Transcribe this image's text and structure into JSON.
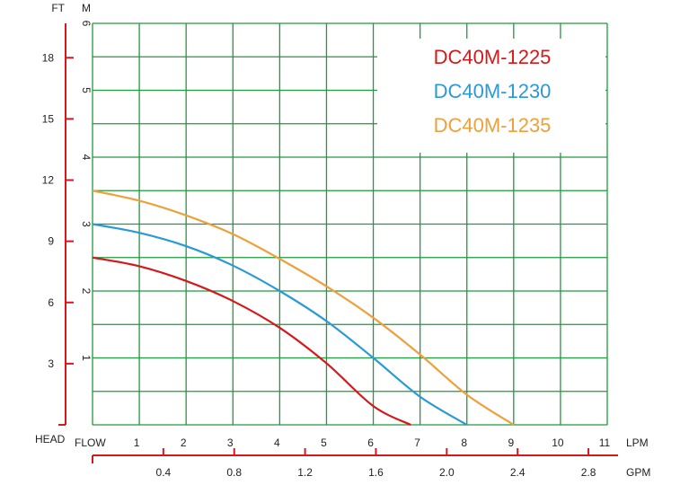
{
  "chart_data": {
    "type": "line",
    "grid": true,
    "legend_position": "top-right",
    "x_primary": {
      "unit_label": "LPM",
      "prefix_label": "FLOW",
      "ticks": [
        1,
        2,
        3,
        4,
        5,
        6,
        7,
        8,
        9,
        10,
        11
      ],
      "tick_labels": [
        "1",
        "2",
        "3",
        "4",
        "5",
        "6",
        "7",
        "8",
        "9",
        "10",
        "11"
      ],
      "range": [
        0,
        11
      ]
    },
    "x_secondary": {
      "unit_label": "GPM",
      "ticks": [
        0.4,
        0.8,
        1.2,
        1.6,
        2.0,
        2.4,
        2.8
      ],
      "tick_labels": [
        "0.4",
        "0.8",
        "1.2",
        "1.6",
        "2.0",
        "2.4",
        "2.8"
      ]
    },
    "y_primary": {
      "unit_label": "M",
      "ticks": [
        1,
        2,
        3,
        4,
        5,
        6
      ],
      "tick_labels": [
        "1",
        "2",
        "3",
        "4",
        "5",
        "6"
      ],
      "range": [
        0,
        6
      ]
    },
    "y_secondary": {
      "unit_label": "FT",
      "ticks": [
        3,
        6,
        9,
        12,
        15,
        18
      ],
      "tick_labels": [
        "3",
        "6",
        "9",
        "12",
        "15",
        "18"
      ]
    },
    "corner_label": "HEAD",
    "series": [
      {
        "name": "DC40M-1225",
        "color": "#d4191c",
        "x": [
          0,
          1,
          2,
          3,
          4,
          5,
          6,
          6.8
        ],
        "y": [
          2.5,
          2.37,
          2.15,
          1.85,
          1.45,
          0.92,
          0.28,
          0
        ]
      },
      {
        "name": "DC40M-1230",
        "color": "#2a9ad6",
        "x": [
          0,
          1,
          2,
          3,
          4,
          5,
          6,
          7,
          8.0
        ],
        "y": [
          3.0,
          2.87,
          2.67,
          2.38,
          2.0,
          1.55,
          1.0,
          0.42,
          0
        ]
      },
      {
        "name": "DC40M-1235",
        "color": "#eea03a",
        "x": [
          0,
          1,
          2,
          3,
          4,
          5,
          6,
          7,
          8,
          9.0
        ],
        "y": [
          3.5,
          3.35,
          3.13,
          2.85,
          2.48,
          2.07,
          1.6,
          1.05,
          0.45,
          0
        ]
      }
    ]
  }
}
